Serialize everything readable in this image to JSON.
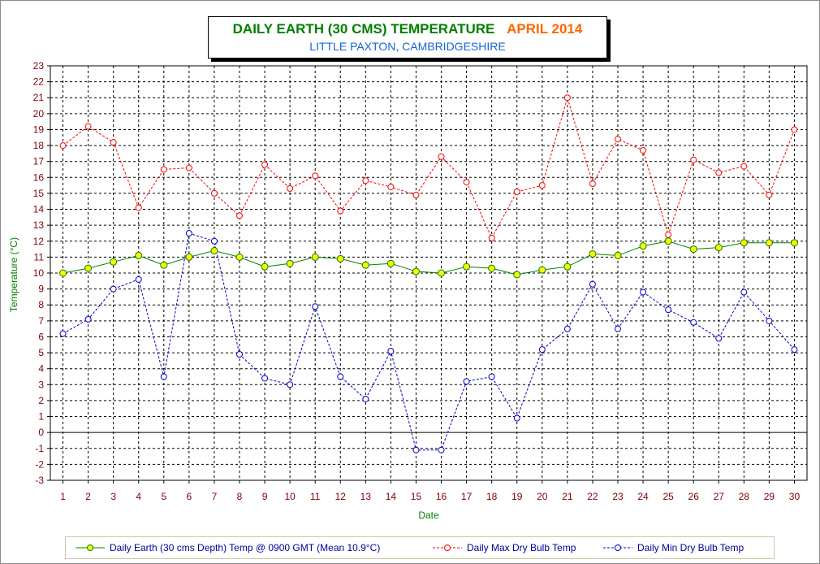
{
  "title": {
    "main": "DAILY EARTH (30 CMS) TEMPERATURE",
    "month": "APRIL 2014",
    "subtitle": "LITTLE PAXTON, CAMBRIDGESHIRE"
  },
  "colors": {
    "earth": "#008000",
    "earth_marker": "#ffff00",
    "max": "#ff0000",
    "min": "#0000cc",
    "title_main": "#008000",
    "title_month": "#ff6600",
    "subtitle": "#1565d8",
    "axis_labels": "#800000",
    "axis_title": "#008000"
  },
  "legend": {
    "earth_label": "Daily Earth (30 cms Depth) Temp @ 0900 GMT (Mean 10.9°C)",
    "max_label": "Daily Max Dry Bulb Temp",
    "min_label": "Daily Min Dry Bulb Temp"
  },
  "chart_data": {
    "type": "line",
    "xlabel": "Date",
    "ylabel": "Temperature (°C)",
    "ylim": [
      -3,
      23
    ],
    "grid": true,
    "legend_position": "bottom",
    "x": [
      1,
      2,
      3,
      4,
      5,
      6,
      7,
      8,
      9,
      10,
      11,
      12,
      13,
      14,
      15,
      16,
      17,
      18,
      19,
      20,
      21,
      22,
      23,
      24,
      25,
      26,
      27,
      28,
      29,
      30
    ],
    "series": [
      {
        "name": "Daily Earth (30 cms Depth) Temp @ 0900 GMT (Mean 10.9°C)",
        "values": [
          10.0,
          10.3,
          10.7,
          11.1,
          10.5,
          11.0,
          11.4,
          11.0,
          10.4,
          10.6,
          11.0,
          10.9,
          10.5,
          10.6,
          10.1,
          10.0,
          10.4,
          10.3,
          9.9,
          10.2,
          10.4,
          11.2,
          11.1,
          11.7,
          12.0,
          11.5,
          11.6,
          11.9,
          11.9,
          11.9
        ]
      },
      {
        "name": "Daily Max Dry Bulb Temp",
        "values": [
          18.0,
          19.2,
          18.2,
          14.1,
          16.5,
          16.6,
          15.0,
          13.6,
          16.8,
          15.3,
          16.1,
          13.9,
          15.8,
          15.4,
          14.9,
          17.3,
          15.7,
          12.2,
          15.1,
          15.5,
          21.0,
          15.6,
          18.4,
          17.7,
          12.4,
          17.1,
          16.3,
          16.7,
          14.9,
          19.0
        ]
      },
      {
        "name": "Daily Min Dry Bulb Temp",
        "values": [
          6.2,
          7.1,
          9.0,
          9.6,
          3.5,
          12.5,
          12.0,
          4.9,
          3.4,
          3.0,
          7.9,
          3.5,
          2.1,
          5.1,
          -1.1,
          -1.1,
          3.2,
          3.5,
          0.9,
          5.2,
          6.5,
          9.3,
          6.5,
          8.8,
          7.7,
          6.9,
          5.9,
          8.8,
          7.0,
          5.2
        ]
      }
    ]
  }
}
